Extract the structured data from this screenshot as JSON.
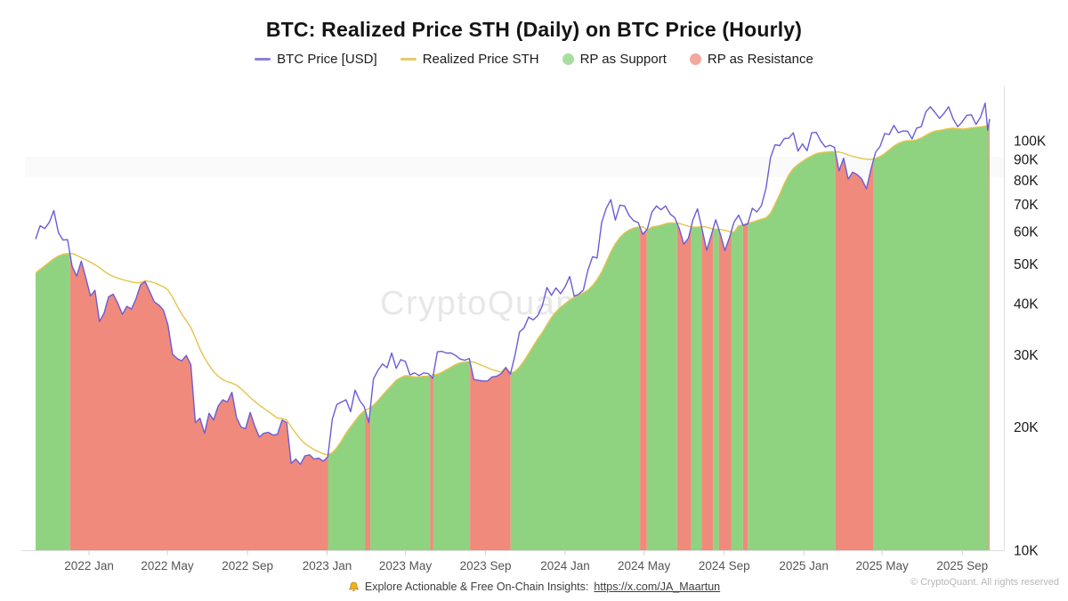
{
  "title": "BTC: Realized Price STH (Daily) on BTC Price (Hourly)",
  "legend": [
    {
      "label": "BTC Price [USD]",
      "type": "line",
      "swatch_color": "#8b80da"
    },
    {
      "label": "Realized Price STH",
      "type": "line",
      "swatch_color": "#e6cb66"
    },
    {
      "label": "RP as Support",
      "type": "dot",
      "swatch_color": "#a9dda0"
    },
    {
      "label": "RP as Resistance",
      "type": "dot",
      "swatch_color": "#f3a79f"
    }
  ],
  "watermark": "CryptoQuant",
  "footer": {
    "note_prefix": "Explore Actionable & Free On-Chain Insights:",
    "link": "https://x.com/JA_Maartun",
    "copyright": "© CryptoQuant. All rights reserved"
  },
  "chart_data": {
    "type": "line+area",
    "title": "BTC: Realized Price STH (Daily) on BTC Price (Hourly)",
    "y_scale": "log",
    "ylim": [
      10000,
      130000
    ],
    "x_range": [
      "2021-10-11",
      "2025-10-13"
    ],
    "legend_position": "top",
    "grid": "off",
    "units": "USD, values stored in thousands (K)",
    "colors": {
      "btc_price_line": "#6b5cd6",
      "realized_price_line": "#e4c44c",
      "support_fill": "#8fd381",
      "resistance_fill": "#f08a7c",
      "axis": "#dedede",
      "tick": "#cfcfcf",
      "x_label": "#555555",
      "y_label": "#1a1a1a"
    },
    "y_ticks": [
      {
        "value": 10000,
        "label": "10K"
      },
      {
        "value": 20000,
        "label": "20K"
      },
      {
        "value": 30000,
        "label": "30K"
      },
      {
        "value": 40000,
        "label": "40K"
      },
      {
        "value": 50000,
        "label": "50K"
      },
      {
        "value": 60000,
        "label": "60K"
      },
      {
        "value": 70000,
        "label": "70K"
      },
      {
        "value": 80000,
        "label": "80K"
      },
      {
        "value": 90000,
        "label": "90K"
      },
      {
        "value": 100000,
        "label": "100K"
      }
    ],
    "x_ticks": [
      {
        "date": "2022-01-01",
        "label": "2022 Jan"
      },
      {
        "date": "2022-05-01",
        "label": "2022 May"
      },
      {
        "date": "2022-09-01",
        "label": "2022 Sep"
      },
      {
        "date": "2023-01-01",
        "label": "2023 Jan"
      },
      {
        "date": "2023-05-01",
        "label": "2023 May"
      },
      {
        "date": "2023-09-01",
        "label": "2023 Sep"
      },
      {
        "date": "2024-01-01",
        "label": "2024 Jan"
      },
      {
        "date": "2024-05-01",
        "label": "2024 May"
      },
      {
        "date": "2024-09-01",
        "label": "2024 Sep"
      },
      {
        "date": "2025-01-01",
        "label": "2025 Jan"
      },
      {
        "date": "2025-05-01",
        "label": "2025 May"
      },
      {
        "date": "2025-09-01",
        "label": "2025 Sep"
      }
    ],
    "dates": [
      "2021-10-11",
      "2021-10-18",
      "2021-10-25",
      "2021-11-01",
      "2021-11-08",
      "2021-11-15",
      "2021-11-22",
      "2021-11-29",
      "2021-12-06",
      "2021-12-13",
      "2021-12-20",
      "2021-12-27",
      "2022-01-03",
      "2022-01-10",
      "2022-01-17",
      "2022-01-24",
      "2022-01-31",
      "2022-02-07",
      "2022-02-14",
      "2022-02-21",
      "2022-02-28",
      "2022-03-07",
      "2022-03-14",
      "2022-03-21",
      "2022-03-28",
      "2022-04-04",
      "2022-04-11",
      "2022-04-18",
      "2022-04-25",
      "2022-05-02",
      "2022-05-09",
      "2022-05-16",
      "2022-05-23",
      "2022-05-30",
      "2022-06-06",
      "2022-06-13",
      "2022-06-20",
      "2022-06-27",
      "2022-07-04",
      "2022-07-11",
      "2022-07-18",
      "2022-07-25",
      "2022-08-01",
      "2022-08-08",
      "2022-08-15",
      "2022-08-22",
      "2022-08-29",
      "2022-09-05",
      "2022-09-12",
      "2022-09-19",
      "2022-09-26",
      "2022-10-03",
      "2022-10-10",
      "2022-10-17",
      "2022-10-24",
      "2022-10-31",
      "2022-11-07",
      "2022-11-14",
      "2022-11-21",
      "2022-11-28",
      "2022-12-05",
      "2022-12-12",
      "2022-12-19",
      "2022-12-26",
      "2023-01-02",
      "2023-01-09",
      "2023-01-16",
      "2023-01-23",
      "2023-01-30",
      "2023-02-06",
      "2023-02-13",
      "2023-02-20",
      "2023-02-27",
      "2023-03-06",
      "2023-03-13",
      "2023-03-20",
      "2023-03-27",
      "2023-04-03",
      "2023-04-10",
      "2023-04-17",
      "2023-04-24",
      "2023-05-01",
      "2023-05-08",
      "2023-05-15",
      "2023-05-22",
      "2023-05-29",
      "2023-06-05",
      "2023-06-12",
      "2023-06-19",
      "2023-06-26",
      "2023-07-03",
      "2023-07-10",
      "2023-07-17",
      "2023-07-24",
      "2023-07-31",
      "2023-08-07",
      "2023-08-14",
      "2023-08-21",
      "2023-08-28",
      "2023-09-04",
      "2023-09-11",
      "2023-09-18",
      "2023-09-25",
      "2023-10-02",
      "2023-10-09",
      "2023-10-16",
      "2023-10-23",
      "2023-10-30",
      "2023-11-06",
      "2023-11-13",
      "2023-11-20",
      "2023-11-27",
      "2023-12-04",
      "2023-12-11",
      "2023-12-18",
      "2023-12-25",
      "2024-01-01",
      "2024-01-08",
      "2024-01-15",
      "2024-01-22",
      "2024-01-29",
      "2024-02-05",
      "2024-02-12",
      "2024-02-19",
      "2024-02-26",
      "2024-03-04",
      "2024-03-11",
      "2024-03-18",
      "2024-03-25",
      "2024-04-01",
      "2024-04-08",
      "2024-04-15",
      "2024-04-22",
      "2024-04-29",
      "2024-05-06",
      "2024-05-13",
      "2024-05-20",
      "2024-05-27",
      "2024-06-03",
      "2024-06-10",
      "2024-06-17",
      "2024-06-24",
      "2024-07-01",
      "2024-07-08",
      "2024-07-15",
      "2024-07-22",
      "2024-07-29",
      "2024-08-05",
      "2024-08-12",
      "2024-08-19",
      "2024-08-26",
      "2024-09-02",
      "2024-09-09",
      "2024-09-16",
      "2024-09-23",
      "2024-09-30",
      "2024-10-07",
      "2024-10-14",
      "2024-10-21",
      "2024-10-28",
      "2024-11-04",
      "2024-11-11",
      "2024-11-18",
      "2024-11-25",
      "2024-12-02",
      "2024-12-09",
      "2024-12-16",
      "2024-12-23",
      "2024-12-30",
      "2025-01-06",
      "2025-01-13",
      "2025-01-20",
      "2025-01-27",
      "2025-02-03",
      "2025-02-10",
      "2025-02-17",
      "2025-02-24",
      "2025-03-03",
      "2025-03-10",
      "2025-03-17",
      "2025-03-24",
      "2025-03-31",
      "2025-04-07",
      "2025-04-14",
      "2025-04-21",
      "2025-04-28",
      "2025-05-05",
      "2025-05-12",
      "2025-05-19",
      "2025-05-26",
      "2025-06-02",
      "2025-06-09",
      "2025-06-16",
      "2025-06-23",
      "2025-06-30",
      "2025-07-07",
      "2025-07-14",
      "2025-07-21",
      "2025-07-28",
      "2025-08-04",
      "2025-08-11",
      "2025-08-18",
      "2025-08-25",
      "2025-09-01",
      "2025-09-08",
      "2025-09-15",
      "2025-09-22",
      "2025-09-29",
      "2025-10-06",
      "2025-10-10",
      "2025-10-13"
    ],
    "btc_price_k": [
      57.5,
      62.0,
      61.0,
      63.2,
      67.5,
      59.7,
      57.2,
      57.3,
      49.4,
      46.7,
      50.8,
      46.3,
      41.8,
      43.1,
      36.2,
      37.9,
      41.6,
      42.2,
      40.1,
      37.7,
      39.4,
      38.8,
      41.1,
      44.5,
      45.3,
      42.8,
      40.4,
      39.7,
      38.6,
      35.5,
      30.1,
      29.4,
      29.0,
      29.9,
      28.4,
      20.5,
      21.0,
      19.3,
      21.6,
      20.8,
      22.5,
      23.3,
      23.0,
      24.3,
      21.1,
      20.0,
      19.8,
      21.7,
      20.1,
      18.9,
      19.3,
      19.4,
      19.1,
      19.2,
      20.8,
      20.5,
      16.3,
      16.7,
      16.2,
      17.0,
      17.1,
      16.7,
      16.8,
      16.5,
      16.9,
      20.9,
      22.7,
      23.0,
      23.3,
      21.8,
      24.6,
      23.2,
      22.4,
      20.5,
      26.2,
      27.5,
      28.5,
      27.9,
      30.3,
      27.8,
      29.2,
      28.9,
      26.8,
      27.1,
      26.7,
      27.1,
      27.0,
      26.3,
      30.5,
      30.6,
      30.3,
      30.3,
      29.9,
      29.3,
      29.1,
      29.4,
      26.1,
      26.0,
      25.9,
      25.9,
      26.5,
      26.6,
      27.0,
      27.9,
      26.9,
      29.9,
      34.1,
      34.9,
      37.1,
      36.5,
      37.4,
      39.5,
      43.8,
      41.9,
      43.7,
      42.3,
      44.0,
      46.6,
      41.7,
      42.2,
      43.2,
      48.3,
      52.1,
      51.7,
      63.1,
      68.3,
      71.8,
      64.0,
      69.6,
      69.3,
      65.7,
      63.8,
      63.1,
      59.1,
      60.8,
      66.9,
      69.3,
      67.8,
      69.3,
      66.2,
      64.9,
      61.0,
      55.9,
      57.8,
      64.1,
      68.2,
      60.7,
      54.0,
      58.7,
      64.1,
      59.1,
      53.9,
      58.0,
      63.3,
      65.8,
      62.1,
      62.7,
      68.4,
      67.0,
      69.4,
      76.5,
      91.0,
      97.7,
      97.3,
      101.2,
      101.4,
      104.5,
      94.3,
      98.2,
      94.5,
      104.5,
      104.8,
      99.8,
      96.5,
      97.5,
      96.3,
      84.4,
      90.6,
      80.6,
      83.8,
      82.6,
      80.5,
      76.3,
      85.2,
      93.7,
      96.9,
      104.1,
      103.5,
      109.0,
      104.6,
      105.6,
      105.5,
      101.0,
      107.3,
      108.2,
      117.5,
      121.0,
      117.4,
      113.4,
      116.6,
      121.0,
      113.0,
      108.2,
      111.2,
      115.4,
      115.7,
      109.6,
      114.1,
      123.5,
      106.0,
      113.0
    ],
    "realized_price_k": [
      47.5,
      48.5,
      49.5,
      50.5,
      51.5,
      52.3,
      52.8,
      53.0,
      53.0,
      52.5,
      51.8,
      51.2,
      50.5,
      49.8,
      49.0,
      48.0,
      47.2,
      46.6,
      46.2,
      45.8,
      45.5,
      45.2,
      45.0,
      45.0,
      45.5,
      45.3,
      45.0,
      44.5,
      44.0,
      43.2,
      41.5,
      39.5,
      37.8,
      36.3,
      35.0,
      33.0,
      31.0,
      29.5,
      28.3,
      27.3,
      26.6,
      26.1,
      25.8,
      25.6,
      25.3,
      24.8,
      24.2,
      23.6,
      23.1,
      22.6,
      22.2,
      21.8,
      21.4,
      21.0,
      21.0,
      20.8,
      20.0,
      19.3,
      18.7,
      18.2,
      17.9,
      17.6,
      17.4,
      17.2,
      17.1,
      17.3,
      17.8,
      18.5,
      19.3,
      20.0,
      20.7,
      21.4,
      21.9,
      22.2,
      22.6,
      23.2,
      23.9,
      24.6,
      25.3,
      26.0,
      26.4,
      26.7,
      26.6,
      26.5,
      26.5,
      26.6,
      26.6,
      26.8,
      26.9,
      27.2,
      27.6,
      28.0,
      28.4,
      28.7,
      28.8,
      28.9,
      28.8,
      28.5,
      28.2,
      27.9,
      27.6,
      27.4,
      27.2,
      28.0,
      27.1,
      27.3,
      28.0,
      29.0,
      30.2,
      31.5,
      32.8,
      34.0,
      35.5,
      37.0,
      38.2,
      39.2,
      40.0,
      40.8,
      41.5,
      42.0,
      42.5,
      43.2,
      44.3,
      45.8,
      47.8,
      50.5,
      53.5,
      56.0,
      58.0,
      59.5,
      60.5,
      61.2,
      61.5,
      61.6,
      60.5,
      61.5,
      61.8,
      62.2,
      62.7,
      63.0,
      63.0,
      62.8,
      62.3,
      61.8,
      61.5,
      61.5,
      61.7,
      61.5,
      61.0,
      60.8,
      60.7,
      60.4,
      60.0,
      59.8,
      62.0,
      62.3,
      62.8,
      63.3,
      63.8,
      64.3,
      64.8,
      66.5,
      70.0,
      74.0,
      78.5,
      82.5,
      85.5,
      87.5,
      89.0,
      90.5,
      91.8,
      93.0,
      93.5,
      93.8,
      94.0,
      94.0,
      93.8,
      93.2,
      92.3,
      91.5,
      91.0,
      90.5,
      90.0,
      90.0,
      90.5,
      91.5,
      93.0,
      95.0,
      97.0,
      98.5,
      99.5,
      100.0,
      100.0,
      100.5,
      101.5,
      103.0,
      104.5,
      105.5,
      106.0,
      106.5,
      107.0,
      107.3,
      107.0,
      106.8,
      107.0,
      107.5,
      107.8,
      108.0,
      108.5,
      109.0,
      109.0
    ]
  }
}
